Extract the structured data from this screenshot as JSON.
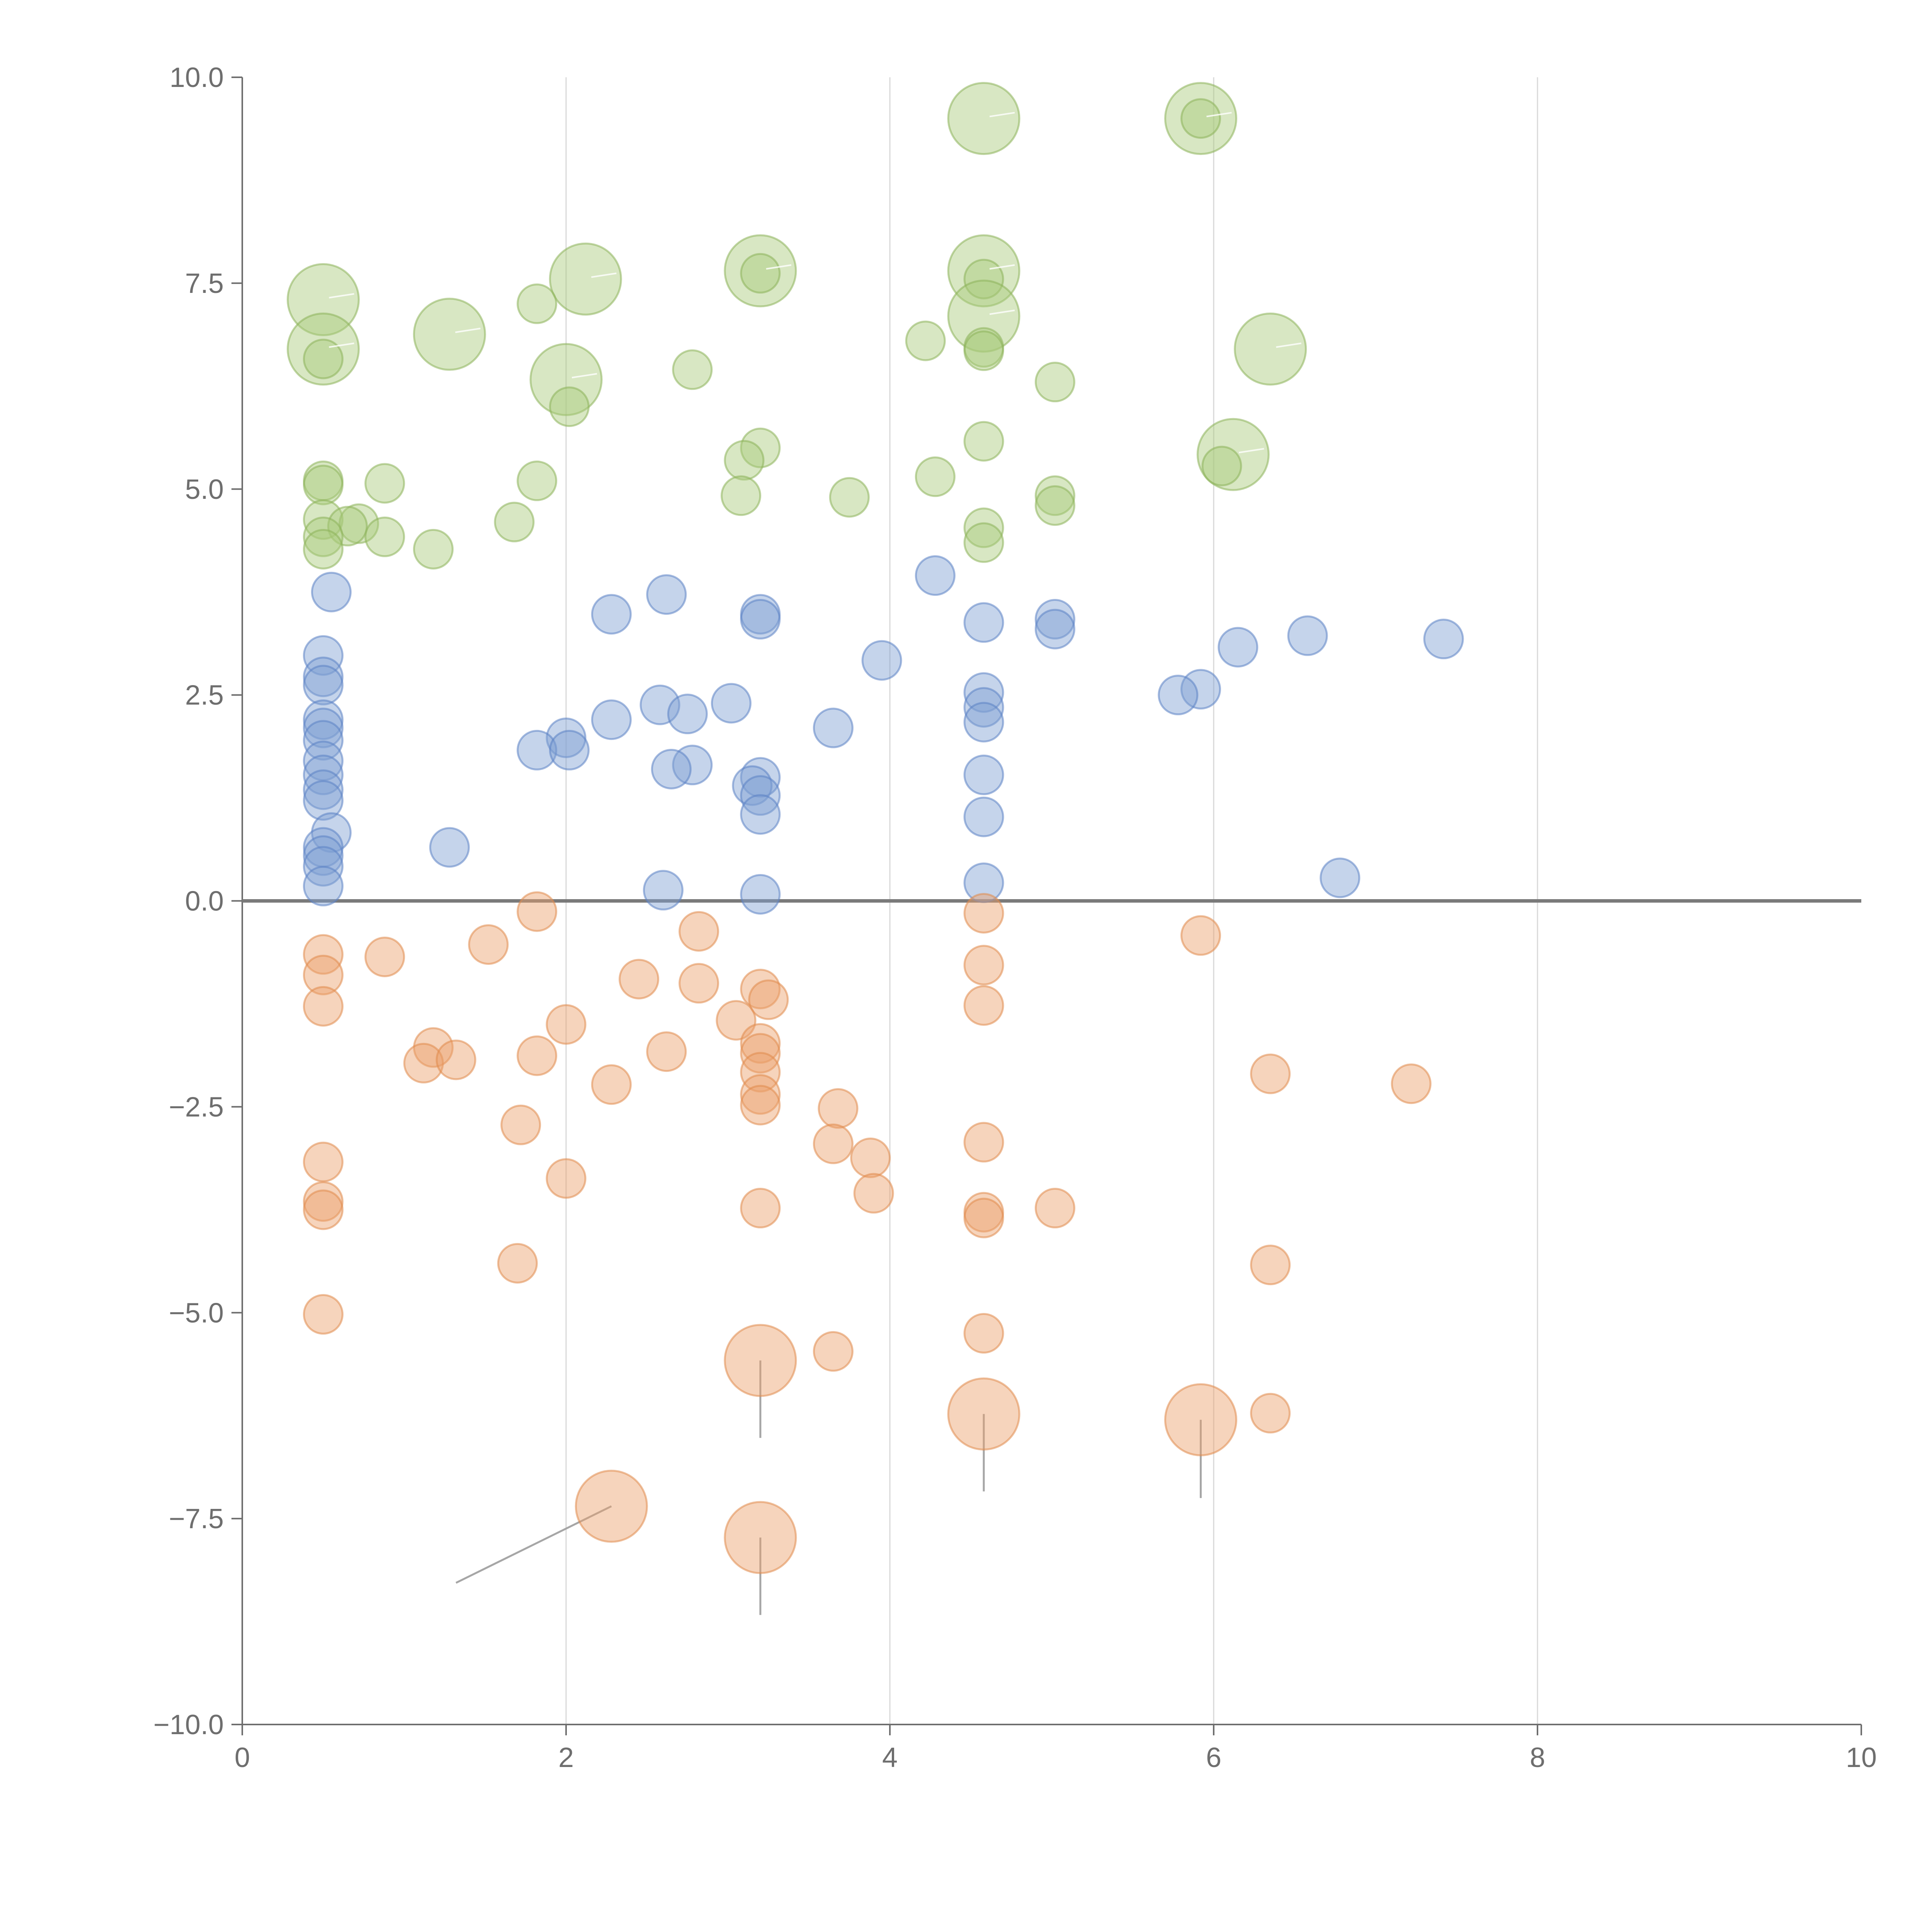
{
  "chart_data": {
    "type": "scatter",
    "title": "",
    "xlabel": "",
    "ylabel": "",
    "xlim": [
      0,
      10
    ],
    "ylim": [
      -10,
      10
    ],
    "grid": "vertical",
    "x_ticks": [
      0,
      2,
      4,
      6,
      8,
      10
    ],
    "x_tick_labels": [
      "0",
      "2",
      "4",
      "6",
      "8",
      "10"
    ],
    "y_ticks": [
      10,
      7.5,
      5,
      2.5,
      0,
      -2.5,
      -5,
      -7.5,
      -10
    ],
    "y_tick_labels": [
      "10.0",
      "7.5",
      "5.0",
      "2.5",
      "0.0",
      "−2.5",
      "−5.0",
      "−7.5",
      "−10.0"
    ],
    "zero_line": 0,
    "colors": {
      "green_fill": "#a9c97a",
      "green_stroke": "#8db35a",
      "blue_fill": "#7f9fd2",
      "blue_stroke": "#5b82c4",
      "orange_fill": "#eba06a",
      "orange_stroke": "#e08a4c"
    },
    "series": [
      {
        "name": "green",
        "fill": "#a9c97a",
        "stroke": "#8db35a",
        "points": [
          [
            4.58,
            9.5,
            2
          ],
          [
            5.92,
            9.5,
            2
          ],
          [
            5.92,
            9.5,
            0.5
          ],
          [
            0.5,
            7.3,
            2
          ],
          [
            2.12,
            7.55,
            2
          ],
          [
            3.2,
            7.65,
            2
          ],
          [
            3.2,
            7.62,
            0.5
          ],
          [
            4.58,
            7.65,
            2
          ],
          [
            4.58,
            7.55,
            0.5
          ],
          [
            1.82,
            7.25,
            0.5
          ],
          [
            1.28,
            6.88,
            2
          ],
          [
            4.58,
            7.1,
            2
          ],
          [
            4.22,
            6.8,
            0.5
          ],
          [
            4.58,
            6.72,
            0.5
          ],
          [
            4.58,
            6.68,
            0.5
          ],
          [
            0.5,
            6.7,
            2
          ],
          [
            0.5,
            6.58,
            0.5
          ],
          [
            6.35,
            6.7,
            2
          ],
          [
            2.78,
            6.45,
            0.5
          ],
          [
            2.0,
            6.33,
            2
          ],
          [
            2.02,
            6.0,
            0.5
          ],
          [
            5.02,
            6.3,
            0.5
          ],
          [
            3.2,
            5.5,
            0.5
          ],
          [
            3.1,
            5.35,
            0.5
          ],
          [
            4.58,
            5.58,
            0.5
          ],
          [
            6.12,
            5.42,
            2
          ],
          [
            6.05,
            5.28,
            0.5
          ],
          [
            4.28,
            5.15,
            0.5
          ],
          [
            1.82,
            5.1,
            0.5
          ],
          [
            0.88,
            5.07,
            0.5
          ],
          [
            0.5,
            5.1,
            0.5
          ],
          [
            0.5,
            5.05,
            0.5
          ],
          [
            3.08,
            4.92,
            0.5
          ],
          [
            3.75,
            4.9,
            0.5
          ],
          [
            5.02,
            4.92,
            0.5
          ],
          [
            5.02,
            4.8,
            0.5
          ],
          [
            0.5,
            4.63,
            0.5
          ],
          [
            0.72,
            4.58,
            0.5
          ],
          [
            0.65,
            4.55,
            0.5
          ],
          [
            1.68,
            4.6,
            0.5
          ],
          [
            4.58,
            4.53,
            0.5
          ],
          [
            0.88,
            4.42,
            0.5
          ],
          [
            0.5,
            4.42,
            0.5
          ],
          [
            0.5,
            4.27,
            0.5
          ],
          [
            1.18,
            4.27,
            0.5
          ],
          [
            4.58,
            4.35,
            0.5
          ]
        ]
      },
      {
        "name": "blue",
        "fill": "#7f9fd2",
        "stroke": "#5b82c4",
        "points": [
          [
            4.28,
            3.95,
            0.5
          ],
          [
            0.55,
            3.75,
            0.5
          ],
          [
            2.28,
            3.48,
            0.5
          ],
          [
            2.62,
            3.72,
            0.5
          ],
          [
            3.2,
            3.48,
            0.5
          ],
          [
            3.2,
            3.42,
            0.5
          ],
          [
            4.58,
            3.38,
            0.5
          ],
          [
            5.02,
            3.42,
            0.5
          ],
          [
            5.02,
            3.3,
            0.5
          ],
          [
            6.58,
            3.22,
            0.5
          ],
          [
            7.42,
            3.18,
            0.5
          ],
          [
            6.15,
            3.08,
            0.5
          ],
          [
            0.5,
            2.98,
            0.5
          ],
          [
            3.95,
            2.92,
            0.5
          ],
          [
            0.5,
            2.72,
            0.5
          ],
          [
            0.5,
            2.62,
            0.5
          ],
          [
            5.92,
            2.57,
            0.5
          ],
          [
            5.78,
            2.5,
            0.5
          ],
          [
            4.58,
            2.53,
            0.5
          ],
          [
            3.02,
            2.4,
            0.5
          ],
          [
            2.58,
            2.38,
            0.5
          ],
          [
            4.58,
            2.35,
            0.5
          ],
          [
            2.75,
            2.27,
            0.5
          ],
          [
            0.5,
            2.2,
            0.5
          ],
          [
            2.28,
            2.2,
            0.5
          ],
          [
            4.58,
            2.17,
            0.5
          ],
          [
            0.5,
            2.1,
            0.5
          ],
          [
            3.65,
            2.1,
            0.5
          ],
          [
            0.5,
            1.95,
            0.5
          ],
          [
            2.0,
            1.98,
            0.5
          ],
          [
            1.82,
            1.83,
            0.5
          ],
          [
            2.02,
            1.83,
            0.5
          ],
          [
            0.5,
            1.7,
            0.5
          ],
          [
            2.78,
            1.65,
            0.5
          ],
          [
            2.65,
            1.6,
            0.5
          ],
          [
            0.5,
            1.53,
            0.5
          ],
          [
            4.58,
            1.53,
            0.5
          ],
          [
            3.2,
            1.5,
            0.5
          ],
          [
            3.15,
            1.4,
            0.5
          ],
          [
            0.5,
            1.35,
            0.5
          ],
          [
            3.2,
            1.28,
            0.5
          ],
          [
            0.5,
            1.22,
            0.5
          ],
          [
            3.2,
            1.05,
            0.5
          ],
          [
            4.58,
            1.02,
            0.5
          ],
          [
            0.55,
            0.83,
            0.5
          ],
          [
            1.28,
            0.65,
            0.5
          ],
          [
            0.5,
            0.65,
            0.5
          ],
          [
            0.5,
            0.55,
            0.5
          ],
          [
            0.5,
            0.42,
            0.5
          ],
          [
            6.78,
            0.28,
            0.5
          ],
          [
            4.58,
            0.22,
            0.5
          ],
          [
            0.5,
            0.18,
            0.5
          ],
          [
            2.6,
            0.13,
            0.5
          ],
          [
            3.2,
            0.08,
            0.5
          ]
        ]
      },
      {
        "name": "orange",
        "fill": "#eba06a",
        "stroke": "#e08a4c",
        "points": [
          [
            1.82,
            -0.13,
            0.5
          ],
          [
            4.58,
            -0.15,
            0.5
          ],
          [
            2.82,
            -0.37,
            0.5
          ],
          [
            5.92,
            -0.42,
            0.5
          ],
          [
            1.52,
            -0.53,
            0.5
          ],
          [
            0.5,
            -0.65,
            0.5
          ],
          [
            0.88,
            -0.68,
            0.5
          ],
          [
            4.58,
            -0.78,
            0.5
          ],
          [
            0.5,
            -0.9,
            0.5
          ],
          [
            2.45,
            -0.95,
            0.5
          ],
          [
            2.82,
            -1.0,
            0.5
          ],
          [
            3.2,
            -1.07,
            0.5
          ],
          [
            3.25,
            -1.2,
            0.5
          ],
          [
            0.5,
            -1.28,
            0.5
          ],
          [
            4.58,
            -1.27,
            0.5
          ],
          [
            2.0,
            -1.5,
            0.5
          ],
          [
            3.05,
            -1.45,
            0.5
          ],
          [
            3.2,
            -1.73,
            0.5
          ],
          [
            1.18,
            -1.78,
            0.5
          ],
          [
            2.62,
            -1.83,
            0.5
          ],
          [
            3.2,
            -1.85,
            0.5
          ],
          [
            1.82,
            -1.88,
            0.5
          ],
          [
            1.12,
            -1.97,
            0.5
          ],
          [
            1.32,
            -1.93,
            0.5
          ],
          [
            3.2,
            -2.08,
            0.5
          ],
          [
            6.35,
            -2.1,
            0.5
          ],
          [
            2.28,
            -2.23,
            0.5
          ],
          [
            7.22,
            -2.22,
            0.5
          ],
          [
            3.2,
            -2.35,
            0.5
          ],
          [
            3.2,
            -2.48,
            0.5
          ],
          [
            3.68,
            -2.52,
            0.5
          ],
          [
            1.72,
            -2.72,
            0.5
          ],
          [
            4.58,
            -2.93,
            0.5
          ],
          [
            3.65,
            -2.95,
            0.5
          ],
          [
            3.88,
            -3.12,
            0.5
          ],
          [
            0.5,
            -3.17,
            0.5
          ],
          [
            2.0,
            -3.37,
            0.5
          ],
          [
            3.9,
            -3.55,
            0.5
          ],
          [
            0.5,
            -3.65,
            0.5
          ],
          [
            0.5,
            -3.75,
            0.5
          ],
          [
            3.2,
            -3.73,
            0.5
          ],
          [
            5.02,
            -3.73,
            0.5
          ],
          [
            4.58,
            -3.78,
            0.5
          ],
          [
            4.58,
            -3.85,
            0.5
          ],
          [
            1.7,
            -4.4,
            0.5
          ],
          [
            6.35,
            -4.42,
            0.5
          ],
          [
            0.5,
            -5.02,
            0.5
          ],
          [
            4.58,
            -5.25,
            0.5
          ],
          [
            3.65,
            -5.47,
            0.5
          ],
          [
            3.2,
            -5.58,
            2
          ],
          [
            4.58,
            -6.23,
            2
          ],
          [
            5.92,
            -6.3,
            2
          ],
          [
            6.35,
            -6.22,
            0.5
          ],
          [
            2.28,
            -7.35,
            2
          ],
          [
            3.2,
            -7.73,
            2
          ]
        ]
      }
    ],
    "annotation_leaders": [
      {
        "from": [
          2.28,
          -7.35
        ],
        "to": [
          1.32,
          -8.28
        ],
        "color": "#a6a6a6"
      },
      {
        "from": [
          3.2,
          -5.58
        ],
        "to": [
          3.2,
          -6.52
        ],
        "color": "#a6a6a6"
      },
      {
        "from": [
          4.58,
          -6.23
        ],
        "to": [
          4.58,
          -7.17
        ],
        "color": "#a6a6a6"
      },
      {
        "from": [
          5.92,
          -6.3
        ],
        "to": [
          5.92,
          -7.25
        ],
        "color": "#a6a6a6"
      },
      {
        "from": [
          3.2,
          -7.73
        ],
        "to": [
          3.2,
          -8.67
        ],
        "color": "#a6a6a6"
      }
    ]
  }
}
